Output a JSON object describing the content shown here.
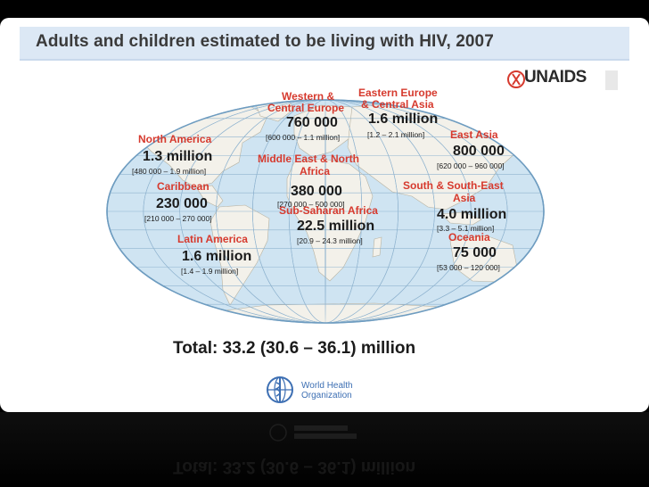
{
  "title": "Adults and children estimated to be living with HIV, 2007",
  "regions": [
    {
      "id": "north-america",
      "name": "North America",
      "value": "1.3 million",
      "range": "[480 000 – 1.9 million]"
    },
    {
      "id": "caribbean",
      "name": "Caribbean",
      "value": "230 000",
      "range": "[210 000 – 270 000]"
    },
    {
      "id": "latin-america",
      "name": "Latin America",
      "value": "1.6 million",
      "range": "[1.4 – 1.9 million]"
    },
    {
      "id": "western-central-europe",
      "name_line1": "Western &",
      "name_line2": "Central Europe",
      "value": "760 000",
      "range": "[600 000 – 1.1 million]"
    },
    {
      "id": "eastern-europe-central-asia",
      "name_line1": "Eastern Europe",
      "name_line2": "& Central Asia",
      "value": "1.6 million",
      "range": "[1.2 – 2.1 million]"
    },
    {
      "id": "middle-east-north-africa",
      "name_line1": "Middle East & North",
      "name_line2": "Africa",
      "value": "380 000",
      "range": "[270 000 – 500 000]"
    },
    {
      "id": "sub-saharan-africa",
      "name": "Sub-Saharan Africa",
      "value": "22.5 million",
      "range": "[20.9 – 24.3 million]"
    },
    {
      "id": "east-asia",
      "name": "East Asia",
      "value": "800 000",
      "range": "[620 000 – 960 000]"
    },
    {
      "id": "south-southeast-asia",
      "name_line1": "South & South-East",
      "name_line2": "Asia",
      "value": "4.0 million",
      "range": "[3.3 – 5.1 million]"
    },
    {
      "id": "oceania",
      "name": "Oceania",
      "value": "75 000",
      "range": "[53 000 – 120 000]"
    }
  ],
  "total": "Total: 33.2 (30.6 – 36.1) million",
  "logos": {
    "unaids": "UNAIDS",
    "who_line1": "World Health",
    "who_line2": "Organization"
  },
  "colors": {
    "ocean": "#cfe4f2",
    "land": "#f3f1ea",
    "region_label": "#d63a2e",
    "title_bar": "#dce8f5"
  }
}
